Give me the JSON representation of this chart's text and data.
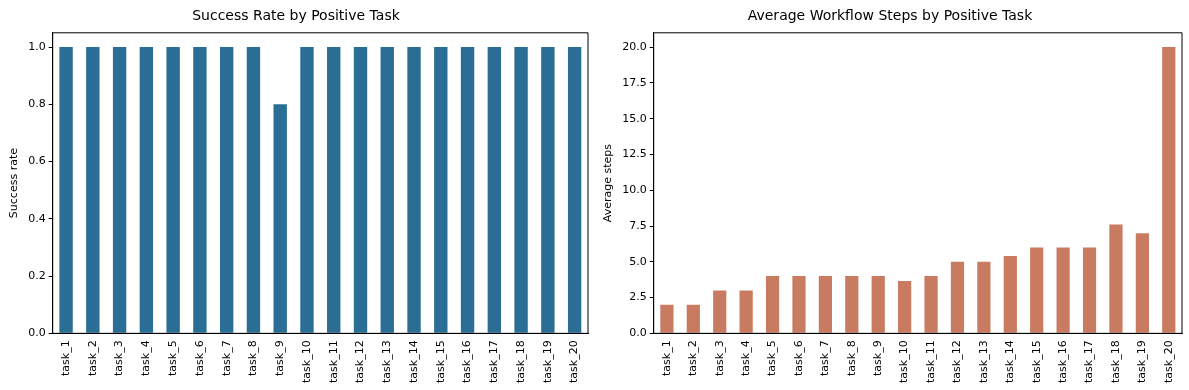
{
  "chart_data": [
    {
      "type": "bar",
      "title": "Success Rate by Positive Task",
      "ylabel": "Success rate",
      "categories": [
        "task_1",
        "task_2",
        "task_3",
        "task_4",
        "task_5",
        "task_6",
        "task_7",
        "task_8",
        "task_9",
        "task_10",
        "task_11",
        "task_12",
        "task_13",
        "task_14",
        "task_15",
        "task_16",
        "task_17",
        "task_18",
        "task_19",
        "task_20"
      ],
      "values": [
        1,
        1,
        1,
        1,
        1,
        1,
        1,
        1,
        0.8,
        1,
        1,
        1,
        1,
        1,
        1,
        1,
        1,
        1,
        1,
        1
      ],
      "color": "#2a6e96",
      "ylim": [
        0,
        1.05
      ],
      "yticks": [
        {
          "value": 0,
          "label": "0.0"
        },
        0.2,
        0.4,
        0.6,
        0.8,
        {
          "value": 1,
          "label": "1.0"
        }
      ],
      "grid": false,
      "legend": false
    },
    {
      "type": "bar",
      "title": "Average Workflow Steps by Positive Task",
      "ylabel": "Average steps",
      "categories": [
        "task_1",
        "task_2",
        "task_3",
        "task_4",
        "task_5",
        "task_6",
        "task_7",
        "task_8",
        "task_9",
        "task_10",
        "task_11",
        "task_12",
        "task_13",
        "task_14",
        "task_15",
        "task_16",
        "task_17",
        "task_18",
        "task_19",
        "task_20"
      ],
      "values": [
        2,
        2,
        3,
        3,
        4,
        4,
        4,
        4,
        4,
        3.65,
        4,
        5,
        5,
        5.4,
        6,
        6,
        6,
        7.6,
        7,
        20
      ],
      "color": "#c97b62",
      "ylim": [
        0,
        21
      ],
      "yticks": [
        {
          "value": 0,
          "label": "0.0"
        },
        2.5,
        {
          "value": 5,
          "label": "5.0"
        },
        7.5,
        {
          "value": 10,
          "label": "10.0"
        },
        12.5,
        {
          "value": 15,
          "label": "15.0"
        },
        17.5,
        {
          "value": 20,
          "label": "20.0"
        }
      ],
      "grid": false,
      "legend": false
    }
  ]
}
